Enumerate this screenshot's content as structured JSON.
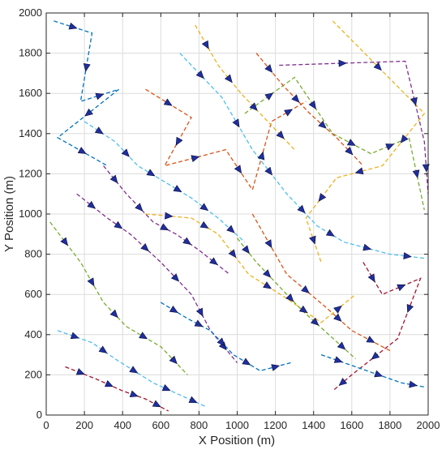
{
  "chart_data": {
    "type": "line",
    "title": "",
    "xlabel": "X Position (m)",
    "ylabel": "Y Position (m)",
    "xlim": [
      0,
      2000
    ],
    "ylim": [
      0,
      2000
    ],
    "xticks": [
      0,
      200,
      400,
      600,
      800,
      1000,
      1200,
      1400,
      1600,
      1800,
      2000
    ],
    "yticks": [
      0,
      200,
      400,
      600,
      800,
      1000,
      1200,
      1400,
      1600,
      1800,
      2000
    ],
    "grid": true,
    "line_style": "dashed",
    "marker": "triangle",
    "marker_color": "#1f2f9e",
    "colors": [
      "#0072bd",
      "#d95319",
      "#edb120",
      "#7e2f8e",
      "#77ac30",
      "#4dbeee",
      "#a2142f"
    ],
    "series": [
      {
        "x": [
          40,
          240,
          180,
          380,
          60,
          320
        ],
        "y": [
          1960,
          1900,
          1560,
          1620,
          1380,
          1240
        ]
      },
      {
        "x": [
          520,
          760,
          620,
          940,
          1080,
          1180,
          1360
        ],
        "y": [
          1620,
          1480,
          1240,
          1320,
          1120,
          1460,
          1560
        ]
      },
      {
        "x": [
          1500,
          1980,
          1760,
          1520,
          1360,
          1440
        ],
        "y": [
          1960,
          1500,
          1240,
          1180,
          980,
          760
        ]
      },
      {
        "x": [
          1220,
          1880,
          1980,
          2000
        ],
        "y": [
          1740,
          1760,
          1360,
          1100
        ]
      },
      {
        "x": [
          1040,
          1300,
          1500,
          1700,
          1900,
          1980
        ],
        "y": [
          1500,
          1680,
          1400,
          1300,
          1380,
          1020
        ]
      },
      {
        "x": [
          700,
          920,
          1080,
          1260,
          1420,
          1560,
          1800,
          1980
        ],
        "y": [
          1800,
          1580,
          1320,
          1100,
          940,
          860,
          800,
          780
        ]
      },
      {
        "x": [
          1660,
          1760,
          1960,
          1840,
          1600,
          1500
        ],
        "y": [
          760,
          600,
          680,
          380,
          200,
          120
        ]
      },
      {
        "x": [
          1440,
          1620,
          1860,
          1980
        ],
        "y": [
          300,
          240,
          160,
          140
        ]
      },
      {
        "x": [
          1080,
          1260,
          1460,
          1600,
          1800
        ],
        "y": [
          1000,
          700,
          540,
          420,
          320
        ]
      },
      {
        "x": [
          520,
          760,
          900,
          1060,
          1260,
          1440,
          1620
        ],
        "y": [
          1000,
          980,
          900,
          700,
          580,
          460,
          600
        ]
      },
      {
        "x": [
          160,
          320,
          440,
          600,
          760,
          860,
          1000
        ],
        "y": [
          1100,
          980,
          900,
          760,
          600,
          420,
          260
        ]
      },
      {
        "x": [
          20,
          180,
          300,
          420,
          600,
          740
        ],
        "y": [
          960,
          760,
          560,
          440,
          340,
          200
        ]
      },
      {
        "x": [
          60,
          240,
          360,
          560,
          700,
          840
        ],
        "y": [
          420,
          360,
          280,
          160,
          100,
          40
        ]
      },
      {
        "x": [
          100,
          260,
          400,
          520,
          640
        ],
        "y": [
          240,
          180,
          120,
          80,
          20
        ]
      },
      {
        "x": [
          600,
          740,
          860,
          980,
          1120,
          1280
        ],
        "y": [
          560,
          480,
          420,
          300,
          220,
          260
        ]
      },
      {
        "x": [
          1100,
          1240,
          1380,
          1520,
          1660
        ],
        "y": [
          1800,
          1640,
          1500,
          1380,
          1240
        ]
      },
      {
        "x": [
          780,
          900,
          1020,
          1160,
          1300
        ],
        "y": [
          1940,
          1740,
          1600,
          1460,
          1320
        ]
      },
      {
        "x": [
          300,
          420,
          560,
          680,
          800,
          960
        ],
        "y": [
          1240,
          1100,
          960,
          900,
          820,
          700
        ]
      },
      {
        "x": [
          1000,
          1100,
          1220,
          1340,
          1480,
          1620
        ],
        "y": [
          880,
          760,
          640,
          520,
          400,
          280
        ]
      },
      {
        "x": [
          200,
          360,
          480,
          620,
          760,
          900,
          1040
        ],
        "y": [
          1460,
          1360,
          1240,
          1160,
          1080,
          980,
          860
        ]
      }
    ]
  }
}
